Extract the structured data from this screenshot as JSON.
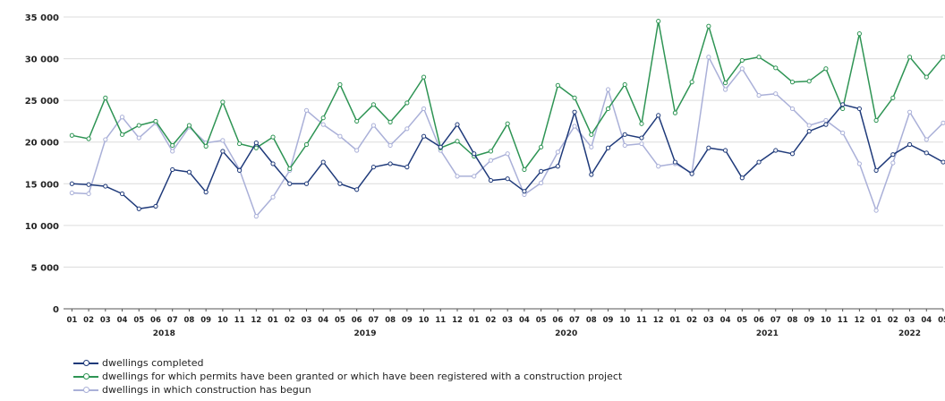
{
  "chart_data": {
    "type": "line",
    "ylim": [
      0,
      35000
    ],
    "yticks": [
      0,
      5000,
      10000,
      15000,
      20000,
      25000,
      30000,
      35000
    ],
    "ytick_labels": [
      "0",
      "5 000",
      "10 000",
      "15 000",
      "20 000",
      "25 000",
      "30 000",
      "35 000"
    ],
    "month_labels": [
      "01",
      "02",
      "03",
      "04",
      "05",
      "06",
      "07",
      "08",
      "09",
      "10",
      "11",
      "12",
      "01",
      "02",
      "03",
      "04",
      "05",
      "06",
      "07",
      "08",
      "09",
      "10",
      "11",
      "12",
      "01",
      "02",
      "03",
      "04",
      "05",
      "06",
      "07",
      "08",
      "09",
      "10",
      "11",
      "12",
      "01",
      "02",
      "03",
      "04",
      "05",
      "06",
      "07",
      "08",
      "09",
      "10",
      "11",
      "12",
      "01",
      "02",
      "03",
      "04",
      "05"
    ],
    "year_labels": [
      "2018",
      "2019",
      "2020",
      "2021",
      "2022"
    ],
    "grid": "horizontal",
    "legend_position": "bottom-left",
    "series": [
      {
        "name": "dwellings completed",
        "color": "#1f3a7a",
        "values": [
          15000,
          14900,
          14700,
          13800,
          12000,
          12300,
          16700,
          16400,
          14000,
          18900,
          16600,
          19900,
          17400,
          15000,
          15000,
          17600,
          15000,
          14300,
          17000,
          17400,
          17000,
          20700,
          19400,
          22100,
          18600,
          15400,
          15600,
          14100,
          16500,
          17100,
          23600,
          16100,
          19300,
          20900,
          20500,
          23200,
          17600,
          16200,
          19300,
          19000,
          15700,
          17600,
          19000,
          18600,
          21300,
          22100,
          24500,
          24000,
          16600,
          18500,
          19700,
          18700,
          17600
        ]
      },
      {
        "name": "dwellings for which permits have been granted or which have been registered with a construction project",
        "color": "#2e9454",
        "values": [
          20800,
          20400,
          25300,
          20900,
          22000,
          22500,
          19600,
          22000,
          19500,
          24800,
          19800,
          19300,
          20600,
          16800,
          19700,
          22900,
          26900,
          22500,
          24500,
          22400,
          24700,
          27800,
          19300,
          20100,
          18300,
          18900,
          22200,
          16700,
          19400,
          26800,
          25300,
          20900,
          24000,
          26900,
          22200,
          34500,
          23500,
          27200,
          33900,
          27100,
          29800,
          30200,
          28900,
          27200,
          27300,
          28800,
          24000,
          33000,
          22600,
          25300,
          30200,
          27800,
          30200
        ]
      },
      {
        "name": "dwellings in which construction has begun",
        "color": "#aab0d8",
        "values": [
          13900,
          13800,
          20300,
          23000,
          20500,
          22300,
          18900,
          21800,
          19900,
          20200,
          16700,
          11100,
          13400,
          16600,
          23800,
          22100,
          20700,
          19000,
          22000,
          19600,
          21600,
          24000,
          19000,
          15900,
          15900,
          17800,
          18600,
          13700,
          15100,
          18800,
          21900,
          19400,
          26300,
          19600,
          19800,
          17100,
          17400,
          16300,
          30200,
          26300,
          28800,
          25600,
          25800,
          24000,
          22000,
          22600,
          21100,
          17400,
          11800,
          17500,
          23600,
          20300,
          22300
        ]
      }
    ]
  }
}
